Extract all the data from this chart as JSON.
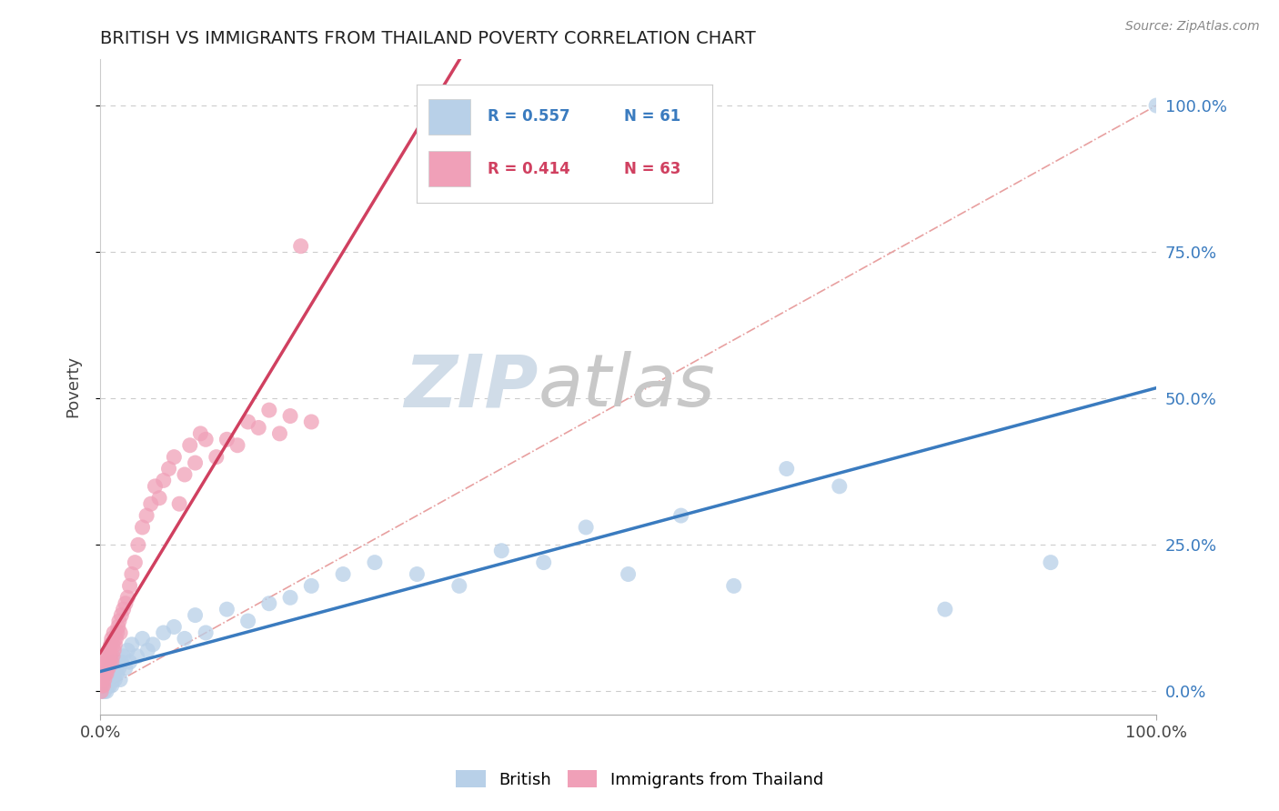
{
  "title": "BRITISH VS IMMIGRANTS FROM THAILAND POVERTY CORRELATION CHART",
  "source_text": "Source: ZipAtlas.com",
  "ylabel": "Poverty",
  "x_min": 0.0,
  "x_max": 1.0,
  "y_min": -0.04,
  "y_max": 1.08,
  "y_tick_labels": [
    "0.0%",
    "25.0%",
    "50.0%",
    "75.0%",
    "100.0%"
  ],
  "y_ticks": [
    0.0,
    0.25,
    0.5,
    0.75,
    1.0
  ],
  "x_tick_label_left": "0.0%",
  "x_tick_label_right": "100.0%",
  "grid_color": "#cccccc",
  "watermark_zip": "ZIP",
  "watermark_atlas": "atlas",
  "series": [
    {
      "name": "British",
      "R": 0.557,
      "N": 61,
      "color": "#b8d0e8",
      "line_color": "#3a7bbf",
      "x": [
        0.002,
        0.003,
        0.004,
        0.005,
        0.005,
        0.006,
        0.006,
        0.007,
        0.007,
        0.008,
        0.008,
        0.009,
        0.009,
        0.01,
        0.01,
        0.011,
        0.011,
        0.012,
        0.012,
        0.013,
        0.014,
        0.015,
        0.016,
        0.017,
        0.018,
        0.019,
        0.02,
        0.022,
        0.024,
        0.026,
        0.028,
        0.03,
        0.035,
        0.04,
        0.045,
        0.05,
        0.06,
        0.07,
        0.08,
        0.09,
        0.1,
        0.12,
        0.14,
        0.16,
        0.18,
        0.2,
        0.23,
        0.26,
        0.3,
        0.34,
        0.38,
        0.42,
        0.46,
        0.5,
        0.55,
        0.6,
        0.65,
        0.7,
        0.8,
        0.9,
        1.0
      ],
      "y": [
        0.0,
        0.01,
        0.0,
        0.02,
        0.01,
        0.03,
        0.0,
        0.02,
        0.01,
        0.03,
        0.02,
        0.04,
        0.01,
        0.02,
        0.03,
        0.01,
        0.04,
        0.02,
        0.05,
        0.03,
        0.02,
        0.04,
        0.03,
        0.05,
        0.04,
        0.02,
        0.05,
        0.06,
        0.04,
        0.07,
        0.05,
        0.08,
        0.06,
        0.09,
        0.07,
        0.08,
        0.1,
        0.11,
        0.09,
        0.13,
        0.1,
        0.14,
        0.12,
        0.15,
        0.16,
        0.18,
        0.2,
        0.22,
        0.2,
        0.18,
        0.24,
        0.22,
        0.28,
        0.2,
        0.3,
        0.18,
        0.38,
        0.35,
        0.14,
        0.22,
        1.0
      ]
    },
    {
      "name": "Immigrants from Thailand",
      "R": 0.414,
      "N": 63,
      "color": "#f0a0b8",
      "line_color": "#d04060",
      "x": [
        0.001,
        0.002,
        0.002,
        0.003,
        0.003,
        0.004,
        0.004,
        0.005,
        0.005,
        0.006,
        0.006,
        0.007,
        0.007,
        0.008,
        0.008,
        0.009,
        0.009,
        0.01,
        0.01,
        0.011,
        0.011,
        0.012,
        0.012,
        0.013,
        0.013,
        0.014,
        0.015,
        0.016,
        0.017,
        0.018,
        0.019,
        0.02,
        0.022,
        0.024,
        0.026,
        0.028,
        0.03,
        0.033,
        0.036,
        0.04,
        0.044,
        0.048,
        0.052,
        0.056,
        0.06,
        0.065,
        0.07,
        0.075,
        0.08,
        0.085,
        0.09,
        0.095,
        0.1,
        0.11,
        0.12,
        0.13,
        0.14,
        0.15,
        0.16,
        0.17,
        0.18,
        0.19,
        0.2
      ],
      "y": [
        0.0,
        0.01,
        0.02,
        0.01,
        0.03,
        0.02,
        0.04,
        0.03,
        0.05,
        0.03,
        0.06,
        0.04,
        0.05,
        0.06,
        0.04,
        0.07,
        0.05,
        0.06,
        0.08,
        0.05,
        0.09,
        0.06,
        0.08,
        0.07,
        0.1,
        0.08,
        0.09,
        0.1,
        0.11,
        0.12,
        0.1,
        0.13,
        0.14,
        0.15,
        0.16,
        0.18,
        0.2,
        0.22,
        0.25,
        0.28,
        0.3,
        0.32,
        0.35,
        0.33,
        0.36,
        0.38,
        0.4,
        0.32,
        0.37,
        0.42,
        0.39,
        0.44,
        0.43,
        0.4,
        0.43,
        0.42,
        0.46,
        0.45,
        0.48,
        0.44,
        0.47,
        0.76,
        0.46
      ]
    }
  ],
  "diagonal_line": {
    "color": "#e8a0a0",
    "linestyle": "-.",
    "linewidth": 1.2
  },
  "background_color": "#ffffff"
}
